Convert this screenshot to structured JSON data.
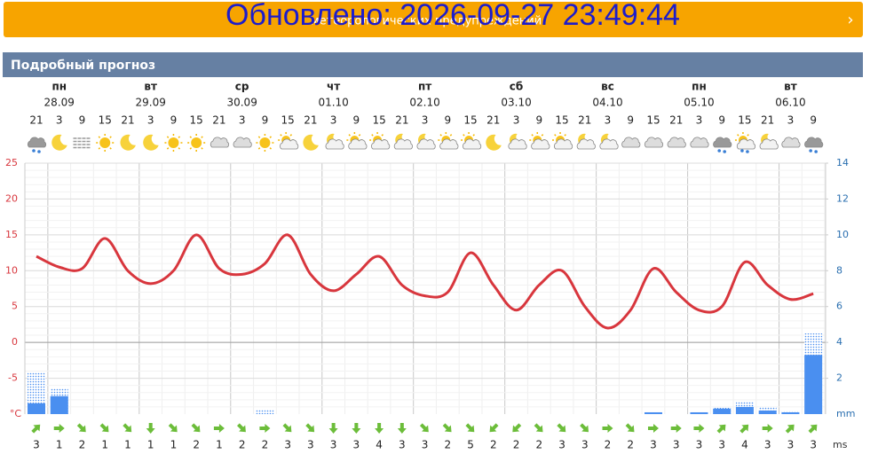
{
  "banner": {
    "warning": "метеорологических предупреждений",
    "updated": "Обновлено: 2026-09-27 23:49:44"
  },
  "panel_title": "Подробный прогноз",
  "chart_data": {
    "type": "forecast",
    "days": [
      {
        "name": "пн",
        "date": "28.09"
      },
      {
        "name": "вт",
        "date": "29.09"
      },
      {
        "name": "ср",
        "date": "30.09"
      },
      {
        "name": "чт",
        "date": "01.10"
      },
      {
        "name": "пт",
        "date": "02.10"
      },
      {
        "name": "сб",
        "date": "03.10"
      },
      {
        "name": "вс",
        "date": "04.10"
      },
      {
        "name": "пн",
        "date": "05.10"
      },
      {
        "name": "вт",
        "date": "06.10"
      }
    ],
    "x": [
      21,
      3,
      9,
      15,
      21,
      3,
      9,
      15,
      21,
      3,
      9,
      15,
      21,
      3,
      9,
      15,
      21,
      3,
      9,
      15,
      21,
      3,
      9,
      15,
      21,
      3,
      9,
      15,
      21,
      3,
      9,
      15,
      21,
      3,
      9
    ],
    "icons": [
      "cloud-rain",
      "moon",
      "fog",
      "sun",
      "moon",
      "moon",
      "sun",
      "sun",
      "cloud",
      "cloud",
      "sun",
      "sun-cloud",
      "moon",
      "moon-cloud",
      "sun-cloud",
      "sun-cloud",
      "moon-cloud",
      "moon-cloud",
      "sun-cloud",
      "sun-cloud",
      "moon",
      "moon-cloud",
      "sun-cloud",
      "sun-cloud",
      "moon-cloud",
      "moon-cloud",
      "cloud",
      "cloud",
      "cloud",
      "cloud",
      "cloud-rain",
      "sun-cloud-rain",
      "moon-cloud",
      "cloud",
      "cloud-rain"
    ],
    "series": [
      {
        "color": "#d8363d",
        "axis": "y",
        "values": [
          12,
          10.5,
          10.3,
          14.5,
          10,
          8.2,
          10,
          15,
          10.3,
          9.5,
          11,
          15,
          9.5,
          7.2,
          9.5,
          12,
          8,
          6.5,
          7,
          12.5,
          8,
          4.5,
          8,
          10,
          5,
          2,
          4.5,
          10.3,
          7,
          4.5,
          5,
          11.2,
          8,
          6,
          6.8
        ]
      },
      {
        "color": "#4a8ff0",
        "axis": "y2",
        "values": [
          0.6,
          1,
          0,
          0,
          0,
          0,
          0,
          0,
          0,
          0,
          0,
          0,
          0,
          0,
          0,
          0,
          0,
          0,
          0,
          0,
          0,
          0,
          0,
          0,
          0,
          0,
          0,
          0.1,
          0,
          0.1,
          0.3,
          0.4,
          0.2,
          0.1,
          3.3
        ]
      },
      {
        "color": "#4a8ff0",
        "axis": "y2",
        "values": [
          2.3,
          1.45,
          0,
          0,
          0,
          0,
          0,
          0,
          0,
          0,
          0.25,
          0,
          0,
          0,
          0,
          0,
          0,
          0,
          0,
          0,
          0,
          0,
          0,
          0,
          0,
          0,
          0,
          0.1,
          0,
          0.1,
          0.35,
          0.7,
          0.4,
          0.15,
          4.5
        ]
      }
    ],
    "ylim": [
      -10,
      25
    ],
    "yticks": [
      25,
      20,
      15,
      10,
      5,
      0,
      -5
    ],
    "y_unit": "°C",
    "y2lim": [
      0,
      14
    ],
    "y2ticks": [
      14,
      12,
      10,
      8,
      6,
      4,
      2
    ],
    "y2_unit": "mm",
    "wind_speed": [
      3,
      1,
      2,
      1,
      1,
      1,
      1,
      2,
      1,
      2,
      2,
      3,
      3,
      3,
      3,
      4,
      3,
      3,
      2,
      5,
      2,
      2,
      2,
      3,
      3,
      2,
      2,
      3,
      3,
      3,
      3,
      4,
      3,
      3,
      3
    ],
    "wind_dir": [
      45,
      90,
      135,
      135,
      135,
      180,
      135,
      135,
      90,
      135,
      90,
      135,
      135,
      180,
      180,
      180,
      180,
      135,
      135,
      135,
      225,
      225,
      135,
      135,
      135,
      90,
      135,
      90,
      90,
      90,
      45,
      45,
      90,
      45,
      45
    ],
    "wind_unit": "ms",
    "wind_color": "#6cbd3a",
    "grid": true
  }
}
